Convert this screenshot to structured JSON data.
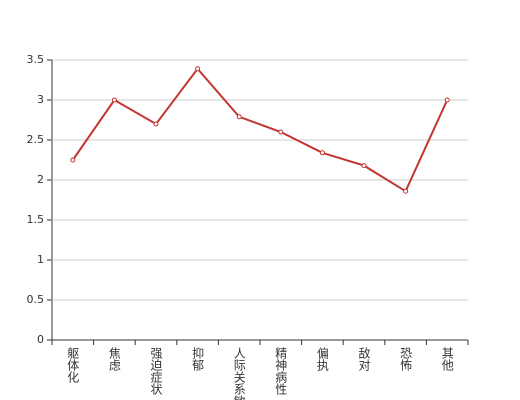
{
  "chart_data": {
    "type": "line",
    "categories": [
      "躯体化",
      "焦虑",
      "强迫症状",
      "抑郁",
      "人际关系敏感",
      "精神病性",
      "偏执",
      "敌对",
      "恐怖",
      "其他"
    ],
    "values": [
      2.25,
      3.0,
      2.7,
      3.39,
      2.79,
      2.6,
      2.34,
      2.18,
      1.86,
      3.0
    ],
    "color": "#c23531",
    "ylim": [
      0,
      3.5
    ],
    "yticks": [
      0,
      0.5,
      1,
      1.5,
      2,
      2.5,
      3,
      3.5
    ],
    "grid": true
  }
}
